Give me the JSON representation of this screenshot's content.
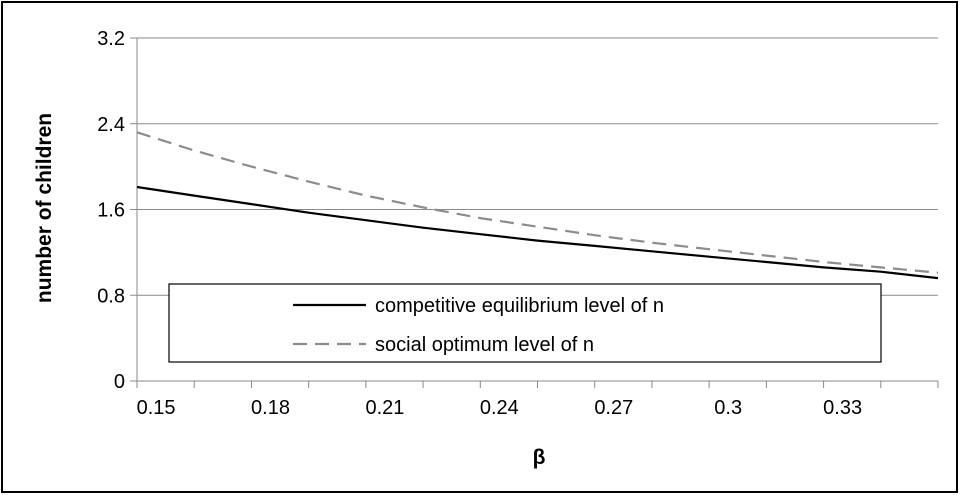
{
  "chart_data": {
    "type": "line",
    "title": "",
    "xlabel": "β",
    "ylabel": "number of children",
    "xlim": [
      0.145,
      0.355
    ],
    "ylim": [
      0,
      3.2
    ],
    "x_ticks": [
      0.15,
      0.18,
      0.21,
      0.24,
      0.27,
      0.3,
      0.33
    ],
    "x_tick_labels": [
      "0.15",
      "0.18",
      "0.21",
      "0.24",
      "0.27",
      "0.3",
      "0.33"
    ],
    "y_ticks": [
      0,
      0.8,
      1.6,
      2.4,
      3.2
    ],
    "y_tick_labels": [
      "0",
      "0.8",
      "1.6",
      "2.4",
      "3.2"
    ],
    "grid": "horizontal",
    "legend_position": "lower-left",
    "x": [
      0.145,
      0.16,
      0.175,
      0.19,
      0.205,
      0.22,
      0.235,
      0.25,
      0.265,
      0.28,
      0.295,
      0.31,
      0.325,
      0.34,
      0.355
    ],
    "series": [
      {
        "name": "competitive equilibrium level of n",
        "color": "#000000",
        "style": "solid",
        "values": [
          1.81,
          1.73,
          1.65,
          1.57,
          1.5,
          1.43,
          1.37,
          1.31,
          1.26,
          1.21,
          1.16,
          1.11,
          1.06,
          1.02,
          0.96
        ]
      },
      {
        "name": "social optimum level of n",
        "color": "#8c8c8c",
        "style": "dashed",
        "values": [
          2.32,
          2.15,
          2.0,
          1.86,
          1.73,
          1.62,
          1.52,
          1.44,
          1.36,
          1.29,
          1.23,
          1.17,
          1.11,
          1.06,
          1.01
        ]
      }
    ]
  }
}
